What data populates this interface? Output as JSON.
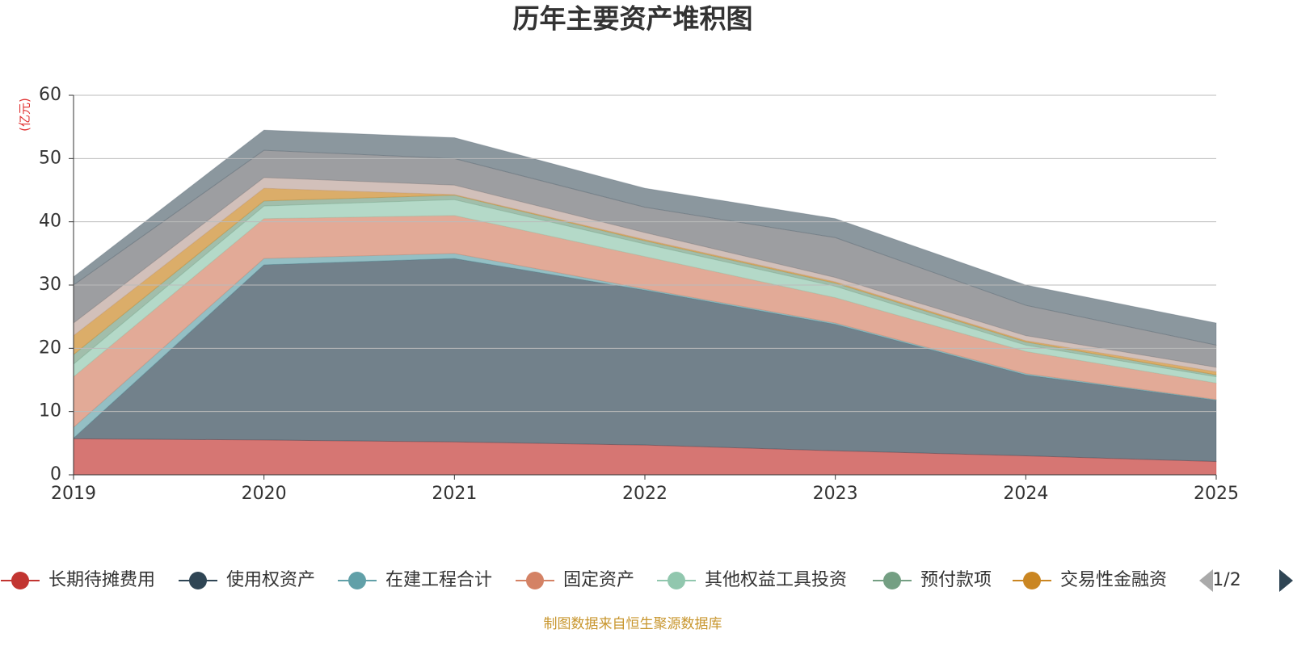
{
  "chart_data": {
    "type": "stacked-area",
    "title": "历年主要资产堆积图",
    "y_label": "(亿元)",
    "categories": [
      "2019",
      "2020",
      "2021",
      "2022",
      "2023",
      "2024",
      "2025"
    ],
    "ylim": [
      0,
      60
    ],
    "yticks": [
      0,
      10,
      20,
      30,
      40,
      50,
      60
    ],
    "grid": true,
    "series": [
      {
        "name": "长期待摊费用",
        "color": "#c23531",
        "values": [
          5.7,
          5.5,
          5.2,
          4.7,
          3.8,
          3.0,
          2.1
        ]
      },
      {
        "name": "使用权资产",
        "color": "#2f4554",
        "values": [
          0.1,
          27.7,
          29.0,
          24.5,
          20.0,
          12.8,
          9.7
        ]
      },
      {
        "name": "在建工程合计",
        "color": "#61a0a8",
        "values": [
          1.7,
          1.0,
          0.8,
          0.2,
          0.2,
          0.2,
          0.1
        ]
      },
      {
        "name": "固定资产",
        "color": "#d48265",
        "values": [
          8.0,
          6.3,
          6.0,
          5.1,
          4.0,
          3.5,
          2.6
        ]
      },
      {
        "name": "其他权益工具投资",
        "color": "#91c7ae",
        "values": [
          2.0,
          2.0,
          2.5,
          2.0,
          1.8,
          1.0,
          1.0
        ]
      },
      {
        "name": "预付款项",
        "color": "#749f83",
        "values": [
          1.5,
          0.8,
          0.7,
          0.5,
          0.5,
          0.5,
          0.3
        ]
      },
      {
        "name": "交易性金融资",
        "color": "#ca8622",
        "values": [
          3.0,
          2.0,
          0.1,
          0.2,
          0.2,
          0.2,
          0.5
        ]
      },
      {
        "name": null,
        "color": "#bda29a",
        "values": [
          2.0,
          1.7,
          1.5,
          1.1,
          0.7,
          0.8,
          0.7
        ]
      },
      {
        "name": null,
        "color": "#6e7074",
        "values": [
          6.0,
          4.3,
          4.2,
          4.0,
          6.3,
          4.8,
          3.5
        ]
      },
      {
        "name": null,
        "color": "#546570",
        "values": [
          1.3,
          3.2,
          3.3,
          3.0,
          3.0,
          3.2,
          3.5
        ]
      }
    ],
    "legend_page": "1/2",
    "source": "制图数据来自恒生聚源数据库"
  }
}
